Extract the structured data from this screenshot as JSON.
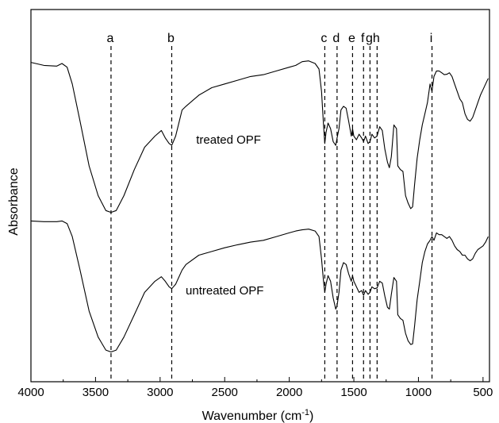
{
  "chart_data": {
    "type": "line",
    "title": "",
    "xlabel": "Wavenumber (cm",
    "xlabel_sup": "-1",
    "xlabel_close": ")",
    "ylabel": "Absorbance",
    "xlim": [
      4000,
      450
    ],
    "x_reversed": true,
    "y_ticks_shown": false,
    "x_ticks": [
      4000,
      3500,
      3000,
      2500,
      2000,
      1500,
      1000,
      500
    ],
    "x_tick_labels": [
      "4000",
      "3500",
      "3000",
      "2500",
      "2000",
      "1500",
      "1000",
      "500"
    ],
    "grid": false,
    "peak_lines": [
      {
        "label": "a",
        "x": 3380
      },
      {
        "label": "b",
        "x": 2910
      },
      {
        "label": "c",
        "x": 1725
      },
      {
        "label": "d",
        "x": 1630
      },
      {
        "label": "e",
        "x": 1510
      },
      {
        "label": "f",
        "x": 1425
      },
      {
        "label": "g",
        "x": 1375
      },
      {
        "label": "h",
        "x": 1320
      },
      {
        "label": "i",
        "x": 895
      }
    ],
    "series": [
      {
        "name": "treated OPF",
        "x": [
          4000,
          3900,
          3800,
          3760,
          3720,
          3680,
          3620,
          3550,
          3480,
          3420,
          3380,
          3340,
          3280,
          3200,
          3120,
          3040,
          2990,
          2960,
          2930,
          2910,
          2880,
          2830,
          2800,
          2700,
          2600,
          2500,
          2400,
          2300,
          2200,
          2100,
          2000,
          1950,
          1900,
          1850,
          1800,
          1770,
          1750,
          1735,
          1725,
          1715,
          1700,
          1680,
          1660,
          1640,
          1630,
          1615,
          1600,
          1580,
          1560,
          1540,
          1520,
          1510,
          1500,
          1480,
          1460,
          1440,
          1425,
          1410,
          1390,
          1375,
          1360,
          1340,
          1320,
          1300,
          1280,
          1260,
          1240,
          1225,
          1210,
          1190,
          1170,
          1160,
          1140,
          1120,
          1100,
          1080,
          1060,
          1045,
          1030,
          1010,
          990,
          970,
          950,
          930,
          910,
          895,
          880,
          860,
          840,
          820,
          800,
          780,
          760,
          740,
          720,
          700,
          680,
          660,
          640,
          620,
          600,
          580,
          560,
          540,
          520,
          500,
          480,
          460
        ],
        "y": [
          0.858,
          0.85,
          0.848,
          0.855,
          0.845,
          0.8,
          0.7,
          0.58,
          0.5,
          0.46,
          0.455,
          0.46,
          0.5,
          0.57,
          0.63,
          0.66,
          0.675,
          0.655,
          0.64,
          0.635,
          0.66,
          0.73,
          0.74,
          0.77,
          0.79,
          0.8,
          0.81,
          0.82,
          0.825,
          0.835,
          0.845,
          0.85,
          0.86,
          0.862,
          0.855,
          0.84,
          0.78,
          0.69,
          0.64,
          0.67,
          0.695,
          0.68,
          0.645,
          0.635,
          0.655,
          0.68,
          0.73,
          0.74,
          0.735,
          0.7,
          0.66,
          0.68,
          0.66,
          0.65,
          0.665,
          0.655,
          0.645,
          0.66,
          0.64,
          0.645,
          0.665,
          0.655,
          0.66,
          0.685,
          0.675,
          0.625,
          0.59,
          0.575,
          0.605,
          0.69,
          0.68,
          0.58,
          0.57,
          0.565,
          0.5,
          0.48,
          0.465,
          0.47,
          0.53,
          0.6,
          0.65,
          0.69,
          0.72,
          0.75,
          0.8,
          0.78,
          0.82,
          0.835,
          0.835,
          0.83,
          0.825,
          0.826,
          0.83,
          0.82,
          0.8,
          0.78,
          0.76,
          0.75,
          0.72,
          0.705,
          0.7,
          0.71,
          0.73,
          0.75,
          0.77,
          0.785,
          0.8,
          0.815
        ]
      },
      {
        "name": "untreated OPF",
        "x": [
          4000,
          3900,
          3800,
          3760,
          3720,
          3680,
          3620,
          3550,
          3480,
          3420,
          3380,
          3340,
          3280,
          3200,
          3120,
          3040,
          2990,
          2960,
          2930,
          2910,
          2880,
          2830,
          2800,
          2700,
          2600,
          2500,
          2400,
          2300,
          2200,
          2100,
          2000,
          1950,
          1900,
          1850,
          1800,
          1770,
          1750,
          1735,
          1725,
          1715,
          1700,
          1680,
          1660,
          1640,
          1630,
          1615,
          1600,
          1580,
          1560,
          1540,
          1520,
          1510,
          1500,
          1480,
          1460,
          1440,
          1425,
          1410,
          1390,
          1375,
          1360,
          1340,
          1320,
          1300,
          1280,
          1260,
          1240,
          1225,
          1210,
          1190,
          1170,
          1160,
          1140,
          1120,
          1100,
          1080,
          1060,
          1045,
          1030,
          1010,
          990,
          970,
          950,
          930,
          910,
          895,
          880,
          860,
          840,
          820,
          800,
          780,
          760,
          740,
          720,
          700,
          680,
          660,
          640,
          620,
          600,
          580,
          560,
          540,
          520,
          500,
          480,
          460
        ],
        "y": [
          0.432,
          0.43,
          0.43,
          0.432,
          0.425,
          0.39,
          0.3,
          0.19,
          0.12,
          0.085,
          0.08,
          0.085,
          0.12,
          0.18,
          0.24,
          0.27,
          0.282,
          0.27,
          0.255,
          0.25,
          0.262,
          0.3,
          0.315,
          0.34,
          0.35,
          0.36,
          0.368,
          0.375,
          0.38,
          0.39,
          0.4,
          0.405,
          0.408,
          0.41,
          0.405,
          0.39,
          0.33,
          0.27,
          0.24,
          0.262,
          0.285,
          0.27,
          0.225,
          0.195,
          0.205,
          0.24,
          0.3,
          0.32,
          0.315,
          0.29,
          0.27,
          0.285,
          0.27,
          0.255,
          0.24,
          0.245,
          0.232,
          0.245,
          0.235,
          0.24,
          0.255,
          0.25,
          0.252,
          0.27,
          0.265,
          0.23,
          0.2,
          0.195,
          0.235,
          0.28,
          0.27,
          0.18,
          0.17,
          0.165,
          0.13,
          0.11,
          0.1,
          0.102,
          0.15,
          0.22,
          0.27,
          0.32,
          0.35,
          0.37,
          0.38,
          0.39,
          0.38,
          0.4,
          0.395,
          0.395,
          0.39,
          0.385,
          0.39,
          0.38,
          0.365,
          0.355,
          0.35,
          0.34,
          0.34,
          0.33,
          0.325,
          0.33,
          0.345,
          0.355,
          0.36,
          0.365,
          0.375,
          0.39
        ]
      }
    ],
    "annotations": [
      {
        "text": "treated OPF",
        "x": 2470,
        "y": 0.64
      },
      {
        "text": "untreated OPF",
        "x": 2500,
        "y": 0.235
      }
    ]
  }
}
